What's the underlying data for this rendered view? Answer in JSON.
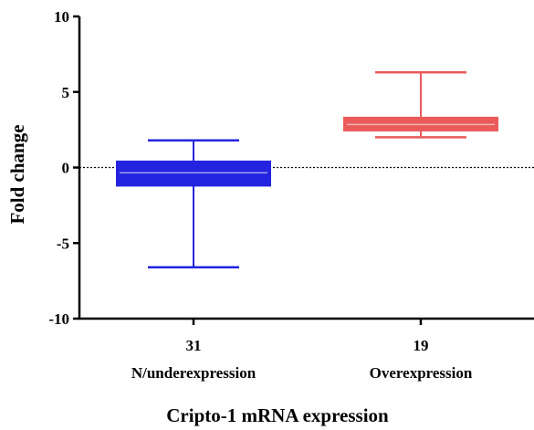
{
  "chart_data": {
    "type": "box",
    "ylabel": "Fold change",
    "xlabel": "Cripto-1 mRNA expression",
    "ylim": [
      -10,
      10
    ],
    "yticks": [
      10,
      5,
      0,
      -5,
      -10
    ],
    "reference_line": 0,
    "grid": false,
    "categories": [
      {
        "count": "31",
        "label": "N/underexpression"
      },
      {
        "count": "19",
        "label": "Overexpression"
      }
    ],
    "series": [
      {
        "category": "N/underexpression",
        "min": -6.6,
        "q1": -1.2,
        "median": -0.35,
        "q3": 0.4,
        "max": 1.8,
        "color": "#2424e0"
      },
      {
        "category": "Overexpression",
        "min": 2.0,
        "q1": 2.45,
        "median": 2.85,
        "q3": 3.3,
        "max": 6.3,
        "color": "#ea5a5a"
      }
    ]
  }
}
